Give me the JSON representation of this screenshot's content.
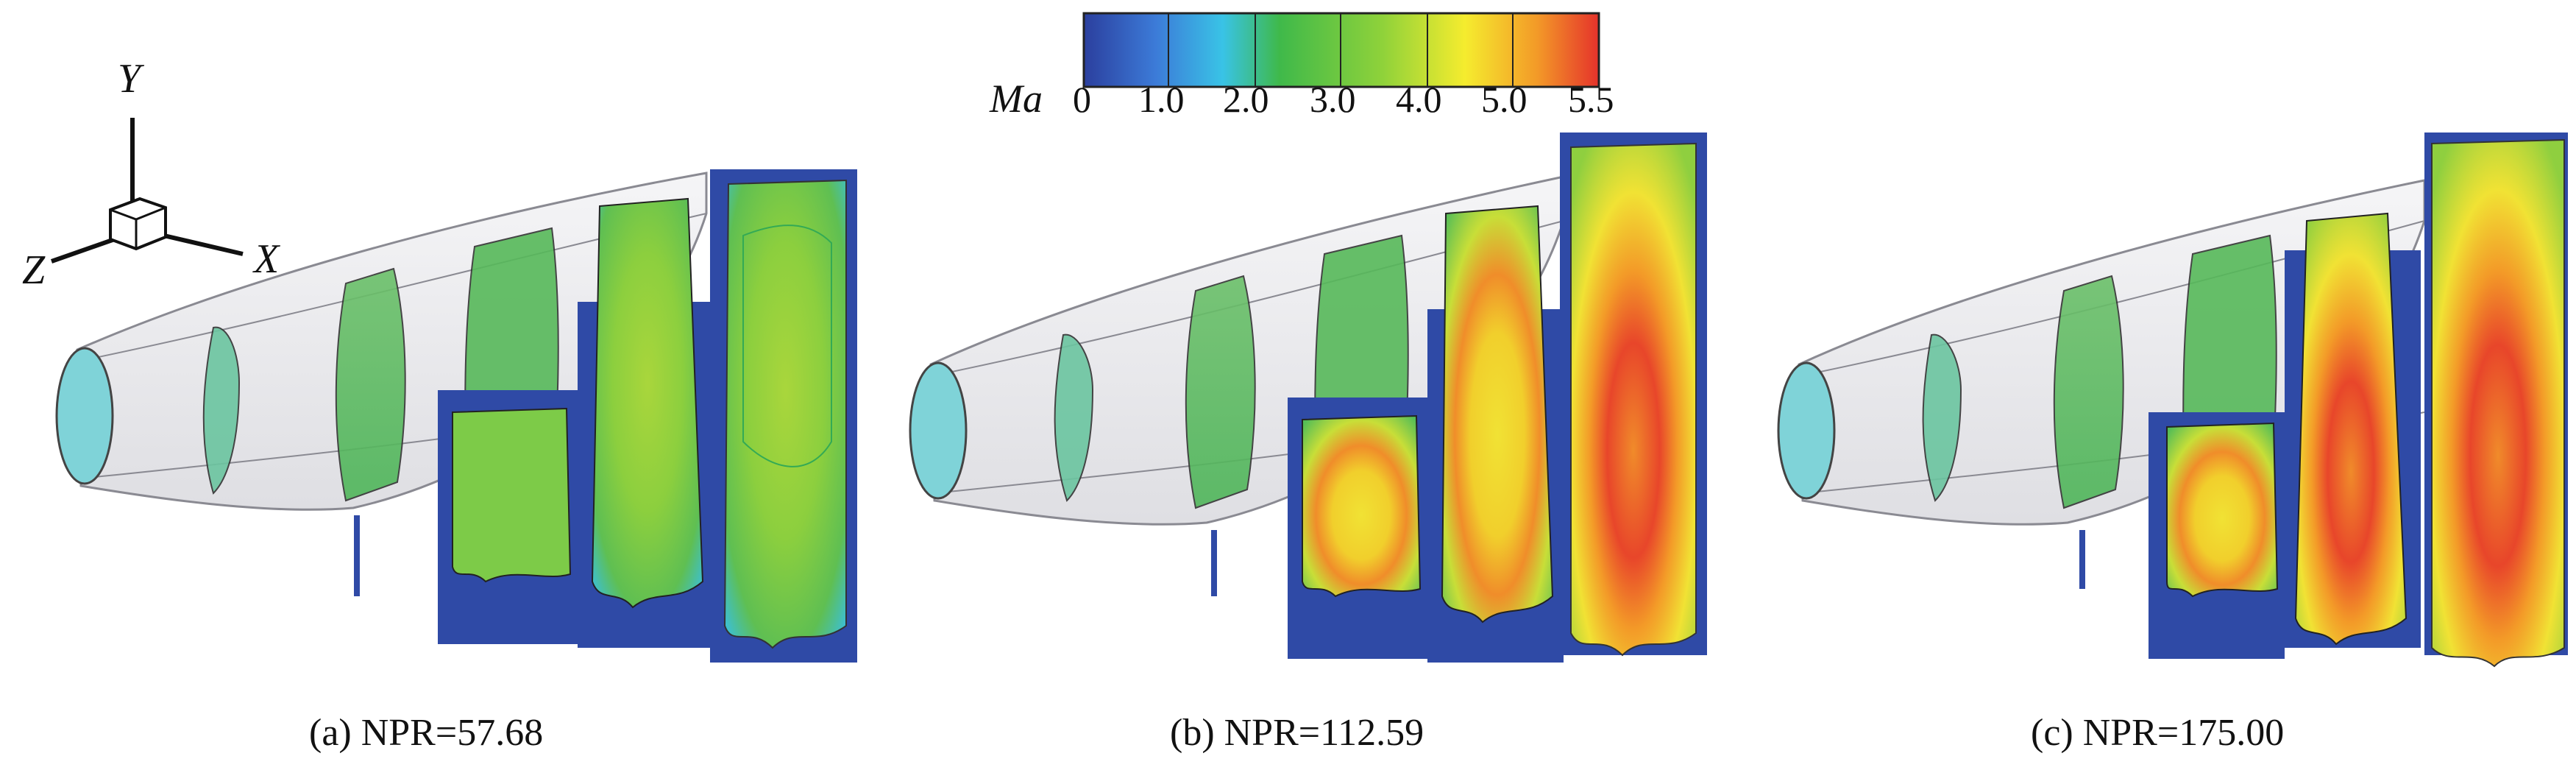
{
  "colorbar": {
    "title": "Ma",
    "tick_labels": [
      "0",
      "1.0",
      "2.0",
      "3.0",
      "4.0",
      "5.0",
      "5.5"
    ],
    "colors": [
      "#2b3f9e",
      "#3c7bd8",
      "#39c3e6",
      "#3fb94a",
      "#8fd23a",
      "#f5ec2e",
      "#f39a28",
      "#e5322b"
    ]
  },
  "axes_triad": {
    "x": "X",
    "y": "Y",
    "z": "Z"
  },
  "panels": [
    {
      "caption": "(a) NPR=57.68"
    },
    {
      "caption": "(b) NPR=112.59"
    },
    {
      "caption": "(c) NPR=175.00"
    }
  ],
  "colors": {
    "inlet": "#7fd3d8",
    "nozzle_shell": "#e9e9ec",
    "plane_background": "#2f4aa6",
    "low_mach_green": "#5fbf5a",
    "mid_mach_green": "#8fcf3f",
    "high_mach_yellow": "#f3e23a",
    "highest_mach_red": "#e8462a"
  }
}
